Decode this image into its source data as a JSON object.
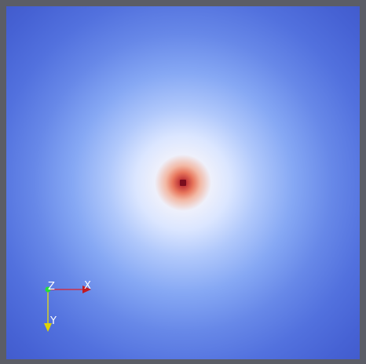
{
  "axes_widget": {
    "x_label": "X",
    "y_label": "Y",
    "z_label": "Z",
    "x_color": "#e0202a",
    "y_color": "#f2e600",
    "z_color": "#22e03a"
  },
  "colormap": {
    "name": "cool-to-warm",
    "low_color": "#3f57c8",
    "mid_color": "#dbe6ff",
    "high_color": "#8a1020"
  }
}
